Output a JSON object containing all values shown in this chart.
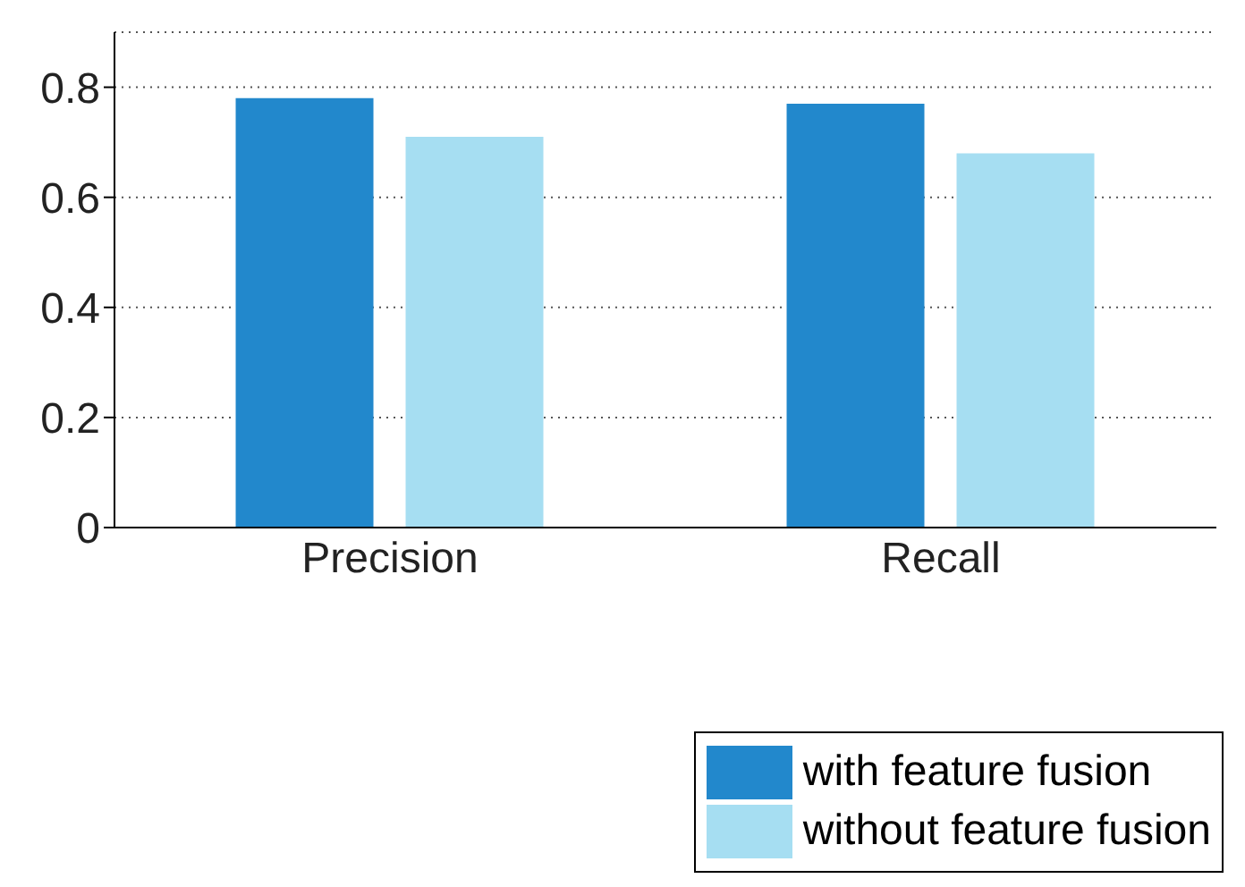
{
  "chart_data": {
    "type": "bar",
    "categories": [
      "Precision",
      "Recall"
    ],
    "series": [
      {
        "name": "with feature fusion",
        "color": "#2288cc",
        "values": [
          0.78,
          0.77
        ]
      },
      {
        "name": "without feature fusion",
        "color": "#a6def2",
        "values": [
          0.71,
          0.68
        ]
      }
    ],
    "ylim": [
      0,
      0.9
    ],
    "yticks": [
      0,
      0.2,
      0.4,
      0.6,
      0.8
    ],
    "grid": "y",
    "legend": "bottom right"
  }
}
